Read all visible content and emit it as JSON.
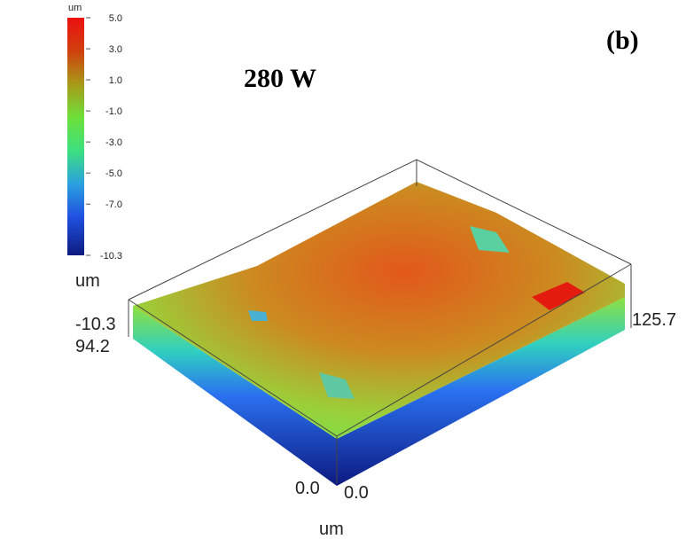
{
  "chart_data": {
    "type": "heatmap",
    "subtype": "3d-surface",
    "title": "280 W",
    "panel_label": "(b)",
    "colorbar": {
      "unit": "um",
      "ticks": [
        "5.0",
        "3.0",
        "1.0",
        "-1.0",
        "-3.0",
        "-5.0",
        "-7.0",
        "-10.3"
      ],
      "range": [
        -10.3,
        5.0
      ],
      "colors": [
        "#e81010",
        "#c84a10",
        "#a89a18",
        "#6ee03a",
        "#3ce07a",
        "#2aa0e0",
        "#2050e0",
        "#101a8a"
      ]
    },
    "axes": {
      "z": {
        "label": "um",
        "min_label": "-10.3"
      },
      "y": {
        "max_label": "94.2",
        "min_label": "0.0"
      },
      "x": {
        "label": "um",
        "min_label": "0.0",
        "max_label": "125.7"
      }
    }
  }
}
